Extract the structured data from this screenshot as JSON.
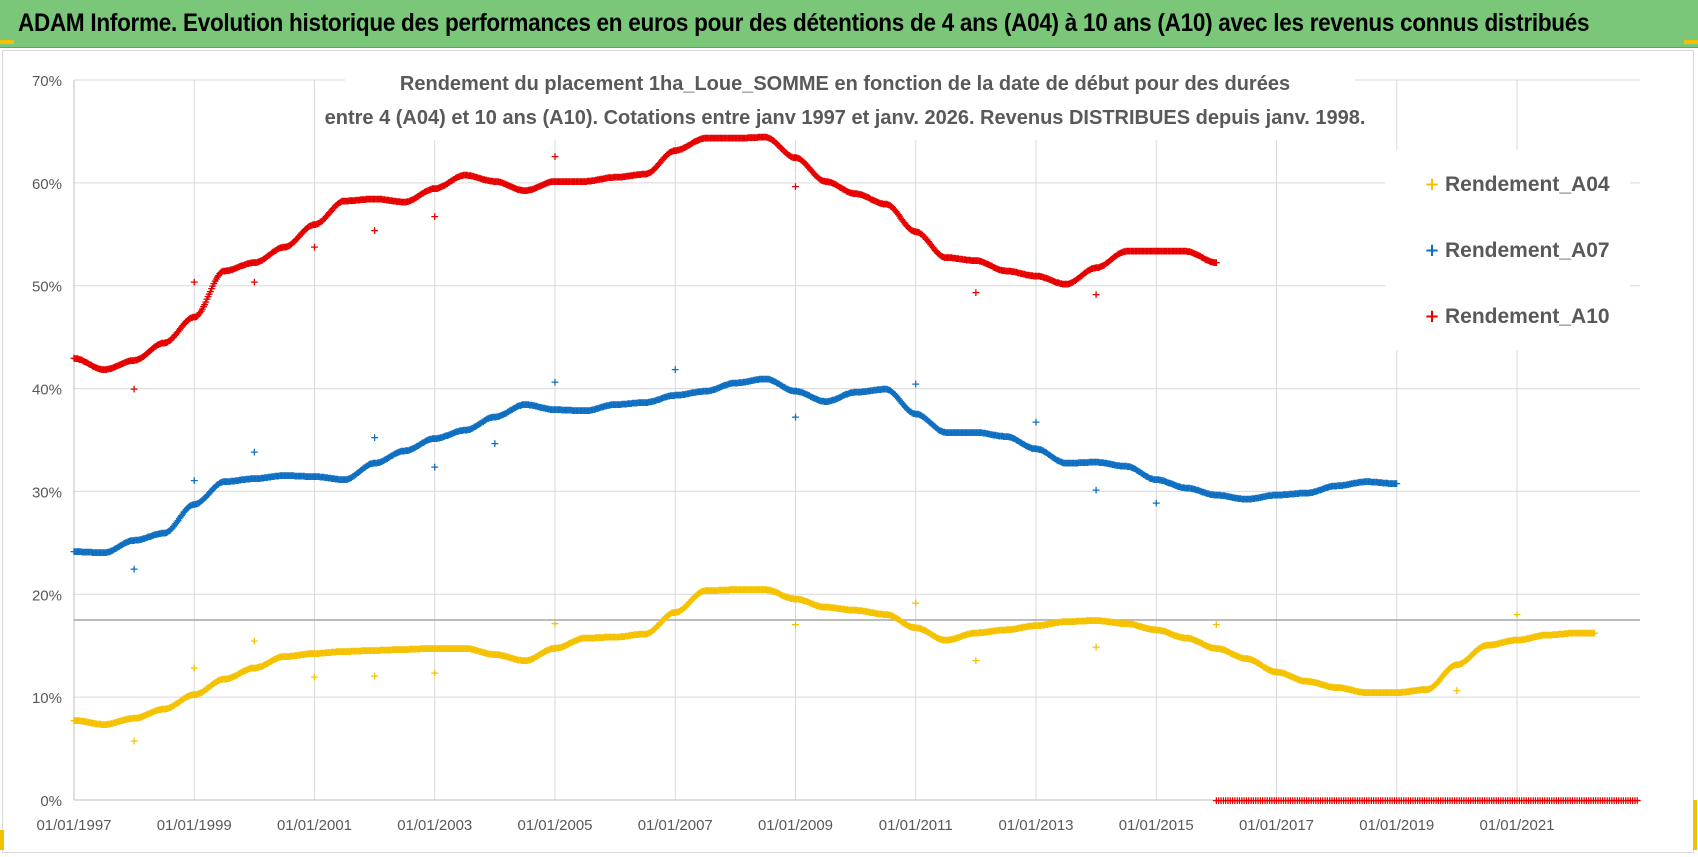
{
  "banner": {
    "title": "ADAM Informe. Evolution historique des performances en euros pour des détentions de 4 ans (A04) à 10 ans (A10) avec les revenus connus distribués"
  },
  "colors": {
    "banner_bg": "#7ac77a",
    "A04": "#f5c200",
    "A07": "#0f6fc1",
    "A10": "#e60000",
    "grid": "#d9d9d9",
    "text": "#595959"
  },
  "chart_data": {
    "type": "scatter",
    "title_line1": "Rendement du placement 1ha_Loue_SOMME en fonction de la date de début pour des durées",
    "title_line2": "entre 4 (A04) et 10 ans (A10). Cotations entre janv 1997 et janv. 2026. Revenus DISTRIBUES depuis janv. 1998.",
    "xlabel": "",
    "ylabel": "",
    "xlim": [
      1997.0,
      2022.0
    ],
    "ylim": [
      0,
      70
    ],
    "grid": true,
    "legend_position": "right",
    "y_ticks": [
      {
        "value": 0,
        "label": "0%"
      },
      {
        "value": 10,
        "label": "10%"
      },
      {
        "value": 20,
        "label": "20%"
      },
      {
        "value": 30,
        "label": "30%"
      },
      {
        "value": 40,
        "label": "40%"
      },
      {
        "value": 50,
        "label": "50%"
      },
      {
        "value": 60,
        "label": "60%"
      },
      {
        "value": 70,
        "label": "70%"
      }
    ],
    "x_ticks": [
      {
        "value": 1997,
        "label": "01/01/1997"
      },
      {
        "value": 1999,
        "label": "01/01/1999"
      },
      {
        "value": 2001,
        "label": "01/01/2001"
      },
      {
        "value": 2003,
        "label": "01/01/2003"
      },
      {
        "value": 2005,
        "label": "01/01/2005"
      },
      {
        "value": 2007,
        "label": "01/01/2007"
      },
      {
        "value": 2009,
        "label": "01/01/2009"
      },
      {
        "value": 2011,
        "label": "01/01/2011"
      },
      {
        "value": 2013,
        "label": "01/01/2013"
      },
      {
        "value": 2015,
        "label": "01/01/2015"
      },
      {
        "value": 2017,
        "label": "01/01/2017"
      },
      {
        "value": 2019,
        "label": "01/01/2019"
      },
      {
        "value": 2021,
        "label": "01/01/2021"
      }
    ],
    "reference_line_value": 17.5,
    "series": [
      {
        "name": "Rendement_A04",
        "color": "#f5c200",
        "points": [
          [
            1997.0,
            7.8
          ],
          [
            1997.5,
            7.4
          ],
          [
            1998.0,
            8.0
          ],
          [
            1998.5,
            8.9
          ],
          [
            1999.0,
            10.3
          ],
          [
            1999.5,
            11.8
          ],
          [
            2000.0,
            12.9
          ],
          [
            2000.5,
            14.0
          ],
          [
            2001.0,
            14.3
          ],
          [
            2001.5,
            14.5
          ],
          [
            2002.0,
            14.6
          ],
          [
            2002.5,
            14.7
          ],
          [
            2003.0,
            14.8
          ],
          [
            2003.5,
            14.8
          ],
          [
            2004.0,
            14.2
          ],
          [
            2004.5,
            13.6
          ],
          [
            2005.0,
            14.8
          ],
          [
            2005.5,
            15.8
          ],
          [
            2006.0,
            15.9
          ],
          [
            2006.5,
            16.2
          ],
          [
            2007.0,
            18.3
          ],
          [
            2007.5,
            20.4
          ],
          [
            2008.0,
            20.5
          ],
          [
            2008.5,
            20.5
          ],
          [
            2009.0,
            19.6
          ],
          [
            2009.5,
            18.8
          ],
          [
            2010.0,
            18.5
          ],
          [
            2010.5,
            18.1
          ],
          [
            2011.0,
            16.8
          ],
          [
            2011.5,
            15.6
          ],
          [
            2012.0,
            16.3
          ],
          [
            2012.5,
            16.6
          ],
          [
            2013.0,
            17.0
          ],
          [
            2013.5,
            17.4
          ],
          [
            2014.0,
            17.5
          ],
          [
            2014.5,
            17.2
          ],
          [
            2015.0,
            16.6
          ],
          [
            2015.5,
            15.8
          ],
          [
            2016.0,
            14.8
          ],
          [
            2016.5,
            13.8
          ],
          [
            2017.0,
            12.5
          ],
          [
            2017.5,
            11.6
          ],
          [
            2018.0,
            11.0
          ],
          [
            2018.5,
            10.5
          ],
          [
            2019.0,
            10.5
          ],
          [
            2019.5,
            10.8
          ],
          [
            2020.0,
            13.2
          ],
          [
            2020.5,
            15.1
          ],
          [
            2021.0,
            15.6
          ],
          [
            2021.5,
            16.1
          ],
          [
            2022.0,
            16.3
          ],
          [
            2022.3,
            16.3
          ]
        ],
        "outliers": [
          [
            1998.0,
            5.8
          ],
          [
            1999.0,
            12.9
          ],
          [
            2000.0,
            15.5
          ],
          [
            2001.0,
            12.0
          ],
          [
            2002.0,
            12.1
          ],
          [
            2003.0,
            12.4
          ],
          [
            2005.0,
            17.2
          ],
          [
            2009.0,
            17.1
          ],
          [
            2011.0,
            19.2
          ],
          [
            2012.0,
            13.6
          ],
          [
            2014.0,
            14.9
          ],
          [
            2016.0,
            17.1
          ],
          [
            2020.0,
            10.7
          ],
          [
            2021.0,
            18.1
          ]
        ]
      },
      {
        "name": "Rendement_A07",
        "color": "#0f6fc1",
        "points": [
          [
            1997.0,
            24.2
          ],
          [
            1997.5,
            24.1
          ],
          [
            1998.0,
            25.3
          ],
          [
            1998.5,
            26.0
          ],
          [
            1999.0,
            28.8
          ],
          [
            1999.5,
            31.0
          ],
          [
            2000.0,
            31.3
          ],
          [
            2000.5,
            31.6
          ],
          [
            2001.0,
            31.5
          ],
          [
            2001.5,
            31.2
          ],
          [
            2002.0,
            32.8
          ],
          [
            2002.5,
            34.0
          ],
          [
            2003.0,
            35.2
          ],
          [
            2003.5,
            36.0
          ],
          [
            2004.0,
            37.3
          ],
          [
            2004.5,
            38.5
          ],
          [
            2005.0,
            38.0
          ],
          [
            2005.5,
            37.9
          ],
          [
            2006.0,
            38.5
          ],
          [
            2006.5,
            38.7
          ],
          [
            2007.0,
            39.4
          ],
          [
            2007.5,
            39.8
          ],
          [
            2008.0,
            40.6
          ],
          [
            2008.5,
            41.0
          ],
          [
            2009.0,
            39.8
          ],
          [
            2009.5,
            38.8
          ],
          [
            2010.0,
            39.7
          ],
          [
            2010.5,
            40.0
          ],
          [
            2011.0,
            37.6
          ],
          [
            2011.5,
            35.8
          ],
          [
            2012.0,
            35.8
          ],
          [
            2012.5,
            35.4
          ],
          [
            2013.0,
            34.2
          ],
          [
            2013.5,
            32.8
          ],
          [
            2014.0,
            32.9
          ],
          [
            2014.5,
            32.5
          ],
          [
            2015.0,
            31.2
          ],
          [
            2015.5,
            30.4
          ],
          [
            2016.0,
            29.7
          ],
          [
            2016.5,
            29.3
          ],
          [
            2017.0,
            29.7
          ],
          [
            2017.5,
            29.9
          ],
          [
            2018.0,
            30.6
          ],
          [
            2018.5,
            31.0
          ],
          [
            2019.0,
            30.8
          ]
        ],
        "outliers": [
          [
            1998.0,
            22.5
          ],
          [
            1999.0,
            31.1
          ],
          [
            2000.0,
            33.9
          ],
          [
            2002.0,
            35.3
          ],
          [
            2003.0,
            32.4
          ],
          [
            2004.0,
            34.7
          ],
          [
            2005.0,
            40.7
          ],
          [
            2007.0,
            41.9
          ],
          [
            2009.0,
            37.3
          ],
          [
            2011.0,
            40.5
          ],
          [
            2013.0,
            36.8
          ],
          [
            2014.0,
            30.2
          ],
          [
            2015.0,
            28.9
          ]
        ]
      },
      {
        "name": "Rendement_A10",
        "color": "#e60000",
        "points": [
          [
            1997.0,
            43.0
          ],
          [
            1997.5,
            41.9
          ],
          [
            1998.0,
            42.8
          ],
          [
            1998.5,
            44.5
          ],
          [
            1999.0,
            47.0
          ],
          [
            1999.5,
            51.5
          ],
          [
            2000.0,
            52.3
          ],
          [
            2000.5,
            53.8
          ],
          [
            2001.0,
            56.0
          ],
          [
            2001.5,
            58.3
          ],
          [
            2002.0,
            58.5
          ],
          [
            2002.5,
            58.2
          ],
          [
            2003.0,
            59.5
          ],
          [
            2003.5,
            60.8
          ],
          [
            2004.0,
            60.2
          ],
          [
            2004.5,
            59.3
          ],
          [
            2005.0,
            60.2
          ],
          [
            2005.5,
            60.2
          ],
          [
            2006.0,
            60.6
          ],
          [
            2006.5,
            60.9
          ],
          [
            2007.0,
            63.2
          ],
          [
            2007.5,
            64.4
          ],
          [
            2008.0,
            64.4
          ],
          [
            2008.5,
            64.5
          ],
          [
            2009.0,
            62.5
          ],
          [
            2009.5,
            60.2
          ],
          [
            2010.0,
            59.0
          ],
          [
            2010.5,
            58.0
          ],
          [
            2011.0,
            55.3
          ],
          [
            2011.5,
            52.8
          ],
          [
            2012.0,
            52.5
          ],
          [
            2012.5,
            51.5
          ],
          [
            2013.0,
            51.0
          ],
          [
            2013.5,
            50.2
          ],
          [
            2014.0,
            51.8
          ],
          [
            2014.5,
            53.4
          ],
          [
            2015.0,
            53.4
          ],
          [
            2015.5,
            53.4
          ],
          [
            2016.0,
            52.3
          ]
        ],
        "outliers": [
          [
            1998.0,
            40.0
          ],
          [
            1999.0,
            50.4
          ],
          [
            2000.0,
            50.4
          ],
          [
            2001.0,
            53.8
          ],
          [
            2002.0,
            55.4
          ],
          [
            2003.0,
            56.8
          ],
          [
            2005.0,
            62.6
          ],
          [
            2009.0,
            59.7
          ],
          [
            2012.0,
            49.4
          ],
          [
            2014.0,
            49.2
          ]
        ],
        "zero_segment": [
          2016.0,
          2023.0
        ]
      }
    ]
  }
}
